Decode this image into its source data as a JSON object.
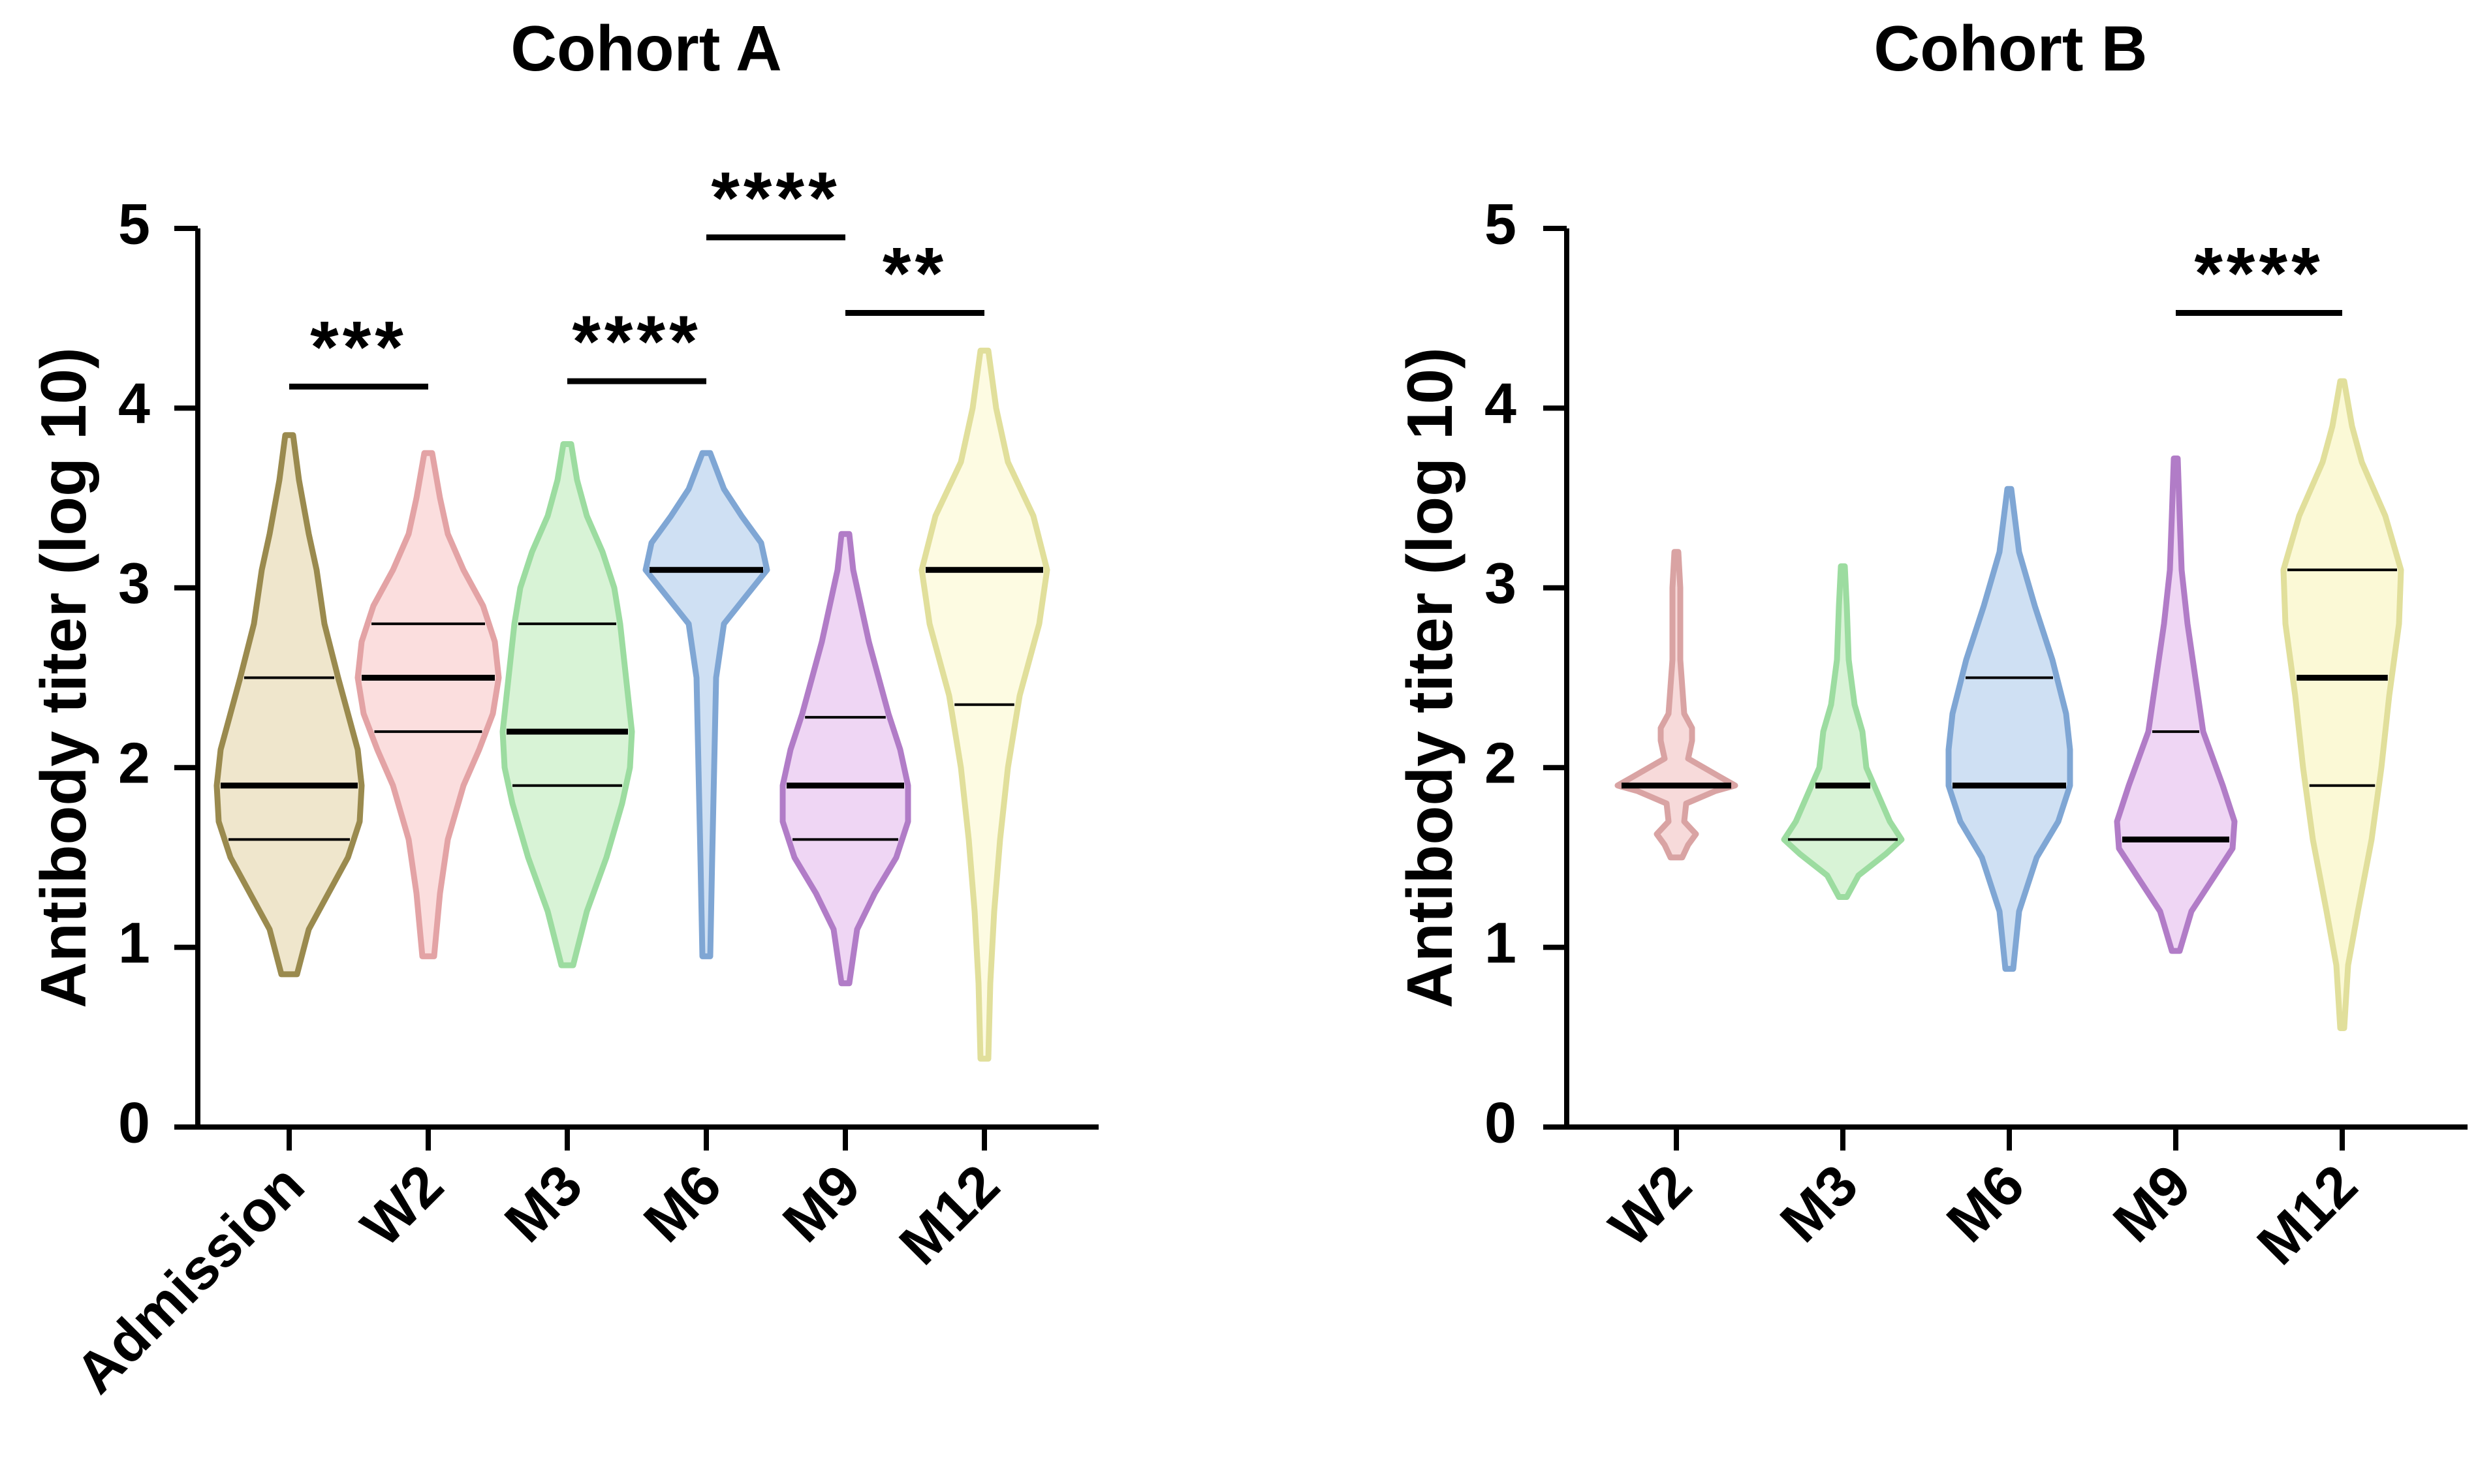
{
  "chart_data": [
    {
      "type": "violin",
      "title": "Cohort A",
      "xlabel": "",
      "ylabel": "Antibody titer (log 10)",
      "ylim": [
        0,
        5
      ],
      "yticks": [
        0,
        1,
        2,
        3,
        4,
        5
      ],
      "categories": [
        "Admission",
        "W2",
        "M3",
        "M6",
        "M9",
        "M12"
      ],
      "violins": [
        {
          "label": "Admission",
          "color": "#9a8a4e",
          "fill": "#efe6cc",
          "min": 0.85,
          "max": 3.85,
          "q1": 1.6,
          "median": 1.9,
          "q3": 2.5,
          "shape": [
            [
              0.85,
              0.04
            ],
            [
              1.1,
              0.1
            ],
            [
              1.3,
              0.2
            ],
            [
              1.5,
              0.3
            ],
            [
              1.7,
              0.36
            ],
            [
              1.9,
              0.37
            ],
            [
              2.1,
              0.35
            ],
            [
              2.3,
              0.3
            ],
            [
              2.5,
              0.25
            ],
            [
              2.8,
              0.18
            ],
            [
              3.1,
              0.14
            ],
            [
              3.3,
              0.1
            ],
            [
              3.6,
              0.05
            ],
            [
              3.85,
              0.02
            ]
          ]
        },
        {
          "label": "W2",
          "color": "#e3a3a5",
          "fill": "#fbdede",
          "min": 0.95,
          "max": 3.75,
          "q1": 2.2,
          "median": 2.5,
          "q3": 2.8,
          "shape": [
            [
              0.95,
              0.03
            ],
            [
              1.3,
              0.06
            ],
            [
              1.6,
              0.1
            ],
            [
              1.9,
              0.18
            ],
            [
              2.1,
              0.26
            ],
            [
              2.3,
              0.33
            ],
            [
              2.5,
              0.36
            ],
            [
              2.7,
              0.34
            ],
            [
              2.9,
              0.28
            ],
            [
              3.1,
              0.18
            ],
            [
              3.3,
              0.1
            ],
            [
              3.5,
              0.06
            ],
            [
              3.75,
              0.02
            ]
          ]
        },
        {
          "label": "M3",
          "color": "#9cdca0",
          "fill": "#d8f3d6",
          "min": 0.9,
          "max": 3.8,
          "q1": 1.9,
          "median": 2.2,
          "q3": 2.8,
          "shape": [
            [
              0.9,
              0.03
            ],
            [
              1.2,
              0.1
            ],
            [
              1.5,
              0.2
            ],
            [
              1.8,
              0.28
            ],
            [
              2.0,
              0.32
            ],
            [
              2.2,
              0.33
            ],
            [
              2.5,
              0.3
            ],
            [
              2.8,
              0.27
            ],
            [
              3.0,
              0.24
            ],
            [
              3.2,
              0.18
            ],
            [
              3.4,
              0.1
            ],
            [
              3.6,
              0.05
            ],
            [
              3.8,
              0.02
            ]
          ]
        },
        {
          "label": "M6",
          "color": "#7fa6d4",
          "fill": "#cfe0f3",
          "min": 0.95,
          "max": 3.75,
          "q1": 3.1,
          "median": 3.1,
          "q3": 3.1,
          "shape": [
            [
              0.95,
              0.02
            ],
            [
              1.5,
              0.03
            ],
            [
              2.0,
              0.04
            ],
            [
              2.5,
              0.05
            ],
            [
              2.8,
              0.09
            ],
            [
              2.95,
              0.2
            ],
            [
              3.1,
              0.31
            ],
            [
              3.25,
              0.28
            ],
            [
              3.4,
              0.18
            ],
            [
              3.55,
              0.09
            ],
            [
              3.75,
              0.02
            ]
          ]
        },
        {
          "label": "M9",
          "color": "#b17cc7",
          "fill": "#efd6f4",
          "min": 0.8,
          "max": 3.3,
          "q1": 1.6,
          "median": 1.9,
          "q3": 2.28,
          "shape": [
            [
              0.8,
              0.02
            ],
            [
              1.1,
              0.06
            ],
            [
              1.3,
              0.15
            ],
            [
              1.5,
              0.26
            ],
            [
              1.7,
              0.32
            ],
            [
              1.9,
              0.32
            ],
            [
              2.1,
              0.28
            ],
            [
              2.3,
              0.22
            ],
            [
              2.5,
              0.17
            ],
            [
              2.7,
              0.12
            ],
            [
              2.9,
              0.08
            ],
            [
              3.1,
              0.04
            ],
            [
              3.3,
              0.02
            ]
          ]
        },
        {
          "label": "M12",
          "color": "#e1df9b",
          "fill": "#fdfbe2",
          "min": 0.38,
          "max": 4.32,
          "q1": 2.35,
          "median": 3.1,
          "q3": 3.1,
          "shape": [
            [
              0.38,
              0.02
            ],
            [
              0.8,
              0.03
            ],
            [
              1.2,
              0.05
            ],
            [
              1.6,
              0.08
            ],
            [
              2.0,
              0.12
            ],
            [
              2.4,
              0.18
            ],
            [
              2.8,
              0.28
            ],
            [
              3.1,
              0.32
            ],
            [
              3.4,
              0.25
            ],
            [
              3.7,
              0.12
            ],
            [
              4.0,
              0.06
            ],
            [
              4.32,
              0.02
            ]
          ]
        }
      ],
      "brackets": [
        {
          "from": "Admission",
          "to": "W2",
          "y": 4.12,
          "label": "***"
        },
        {
          "from": "M3",
          "to": "M6",
          "y": 4.15,
          "label": "****"
        },
        {
          "from": "M6",
          "to": "M9",
          "y": 4.95,
          "label": "****"
        },
        {
          "from": "M9",
          "to": "M12",
          "y": 4.53,
          "label": "**"
        }
      ]
    },
    {
      "type": "violin",
      "title": "Cohort B",
      "xlabel": "",
      "ylabel": "Antibody titer (log 10)",
      "ylim": [
        0,
        5
      ],
      "yticks": [
        0,
        1,
        2,
        3,
        4,
        5
      ],
      "categories": [
        "W2",
        "M3",
        "M6",
        "M9",
        "M12"
      ],
      "violins": [
        {
          "label": "W2",
          "color": "#d9a3a3",
          "fill": "#f7dada",
          "min": 1.5,
          "max": 3.2,
          "q1": 1.9,
          "median": 1.9,
          "q3": 1.9,
          "shape": [
            [
              1.5,
              0.03
            ],
            [
              1.57,
              0.06
            ],
            [
              1.63,
              0.1
            ],
            [
              1.7,
              0.04
            ],
            [
              1.8,
              0.05
            ],
            [
              1.87,
              0.2
            ],
            [
              1.9,
              0.3
            ],
            [
              1.95,
              0.22
            ],
            [
              2.05,
              0.06
            ],
            [
              2.15,
              0.08
            ],
            [
              2.22,
              0.08
            ],
            [
              2.3,
              0.04
            ],
            [
              2.6,
              0.02
            ],
            [
              3.0,
              0.02
            ],
            [
              3.2,
              0.01
            ]
          ]
        },
        {
          "label": "M3",
          "color": "#9cdca0",
          "fill": "#d8f3d6",
          "min": 1.28,
          "max": 3.12,
          "q1": 1.6,
          "median": 1.9,
          "q3": 1.9,
          "shape": [
            [
              1.28,
              0.02
            ],
            [
              1.4,
              0.08
            ],
            [
              1.52,
              0.22
            ],
            [
              1.6,
              0.3
            ],
            [
              1.7,
              0.24
            ],
            [
              1.85,
              0.18
            ],
            [
              2.0,
              0.12
            ],
            [
              2.2,
              0.1
            ],
            [
              2.35,
              0.06
            ],
            [
              2.6,
              0.03
            ],
            [
              2.9,
              0.02
            ],
            [
              3.12,
              0.01
            ]
          ]
        },
        {
          "label": "M6",
          "color": "#7fa6d4",
          "fill": "#cfe0f3",
          "min": 0.88,
          "max": 3.55,
          "q1": 1.9,
          "median": 1.9,
          "q3": 2.5,
          "shape": [
            [
              0.88,
              0.02
            ],
            [
              1.2,
              0.05
            ],
            [
              1.5,
              0.14
            ],
            [
              1.7,
              0.25
            ],
            [
              1.9,
              0.31
            ],
            [
              2.1,
              0.31
            ],
            [
              2.3,
              0.29
            ],
            [
              2.6,
              0.22
            ],
            [
              2.9,
              0.13
            ],
            [
              3.2,
              0.05
            ],
            [
              3.55,
              0.01
            ]
          ]
        },
        {
          "label": "M9",
          "color": "#b17cc7",
          "fill": "#efd6f4",
          "min": 0.98,
          "max": 3.72,
          "q1": 1.6,
          "median": 1.6,
          "q3": 2.2,
          "shape": [
            [
              0.98,
              0.02
            ],
            [
              1.2,
              0.08
            ],
            [
              1.4,
              0.2
            ],
            [
              1.55,
              0.29
            ],
            [
              1.7,
              0.3
            ],
            [
              1.9,
              0.24
            ],
            [
              2.2,
              0.14
            ],
            [
              2.5,
              0.1
            ],
            [
              2.8,
              0.06
            ],
            [
              3.1,
              0.03
            ],
            [
              3.4,
              0.02
            ],
            [
              3.72,
              0.01
            ]
          ]
        },
        {
          "label": "M12",
          "color": "#e1df9b",
          "fill": "#fbf9d6",
          "min": 0.55,
          "max": 4.15,
          "q1": 1.9,
          "median": 2.5,
          "q3": 3.1,
          "shape": [
            [
              0.55,
              0.01
            ],
            [
              0.9,
              0.03
            ],
            [
              1.2,
              0.08
            ],
            [
              1.6,
              0.15
            ],
            [
              2.0,
              0.2
            ],
            [
              2.4,
              0.24
            ],
            [
              2.8,
              0.29
            ],
            [
              3.1,
              0.3
            ],
            [
              3.4,
              0.22
            ],
            [
              3.7,
              0.1
            ],
            [
              3.9,
              0.05
            ],
            [
              4.15,
              0.01
            ]
          ]
        }
      ],
      "brackets": [
        {
          "from": "M9",
          "to": "M12",
          "y": 4.53,
          "label": "****"
        }
      ]
    }
  ]
}
